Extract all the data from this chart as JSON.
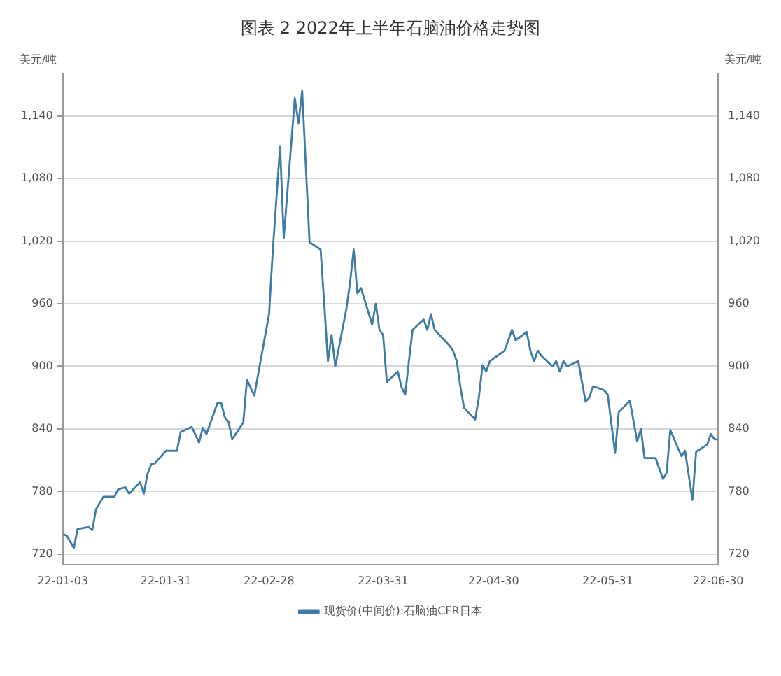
{
  "chart_data": {
    "type": "line",
    "title": "图表  2  2022年上半年石脑油价格走势图",
    "ylabel": "美元/吨",
    "y2label": "美元/吨",
    "xlim": [
      "2022-01-03",
      "2022-06-30"
    ],
    "xticks": [
      {
        "value": "2022-01-03",
        "label": "22-01-03"
      },
      {
        "value": "2022-01-31",
        "label": "22-01-31"
      },
      {
        "value": "2022-02-28",
        "label": "22-02-28"
      },
      {
        "value": "2022-03-31",
        "label": "22-03-31"
      },
      {
        "value": "2022-04-30",
        "label": "22-04-30"
      },
      {
        "value": "2022-05-31",
        "label": "22-05-31"
      },
      {
        "value": "2022-06-30",
        "label": "22-06-30"
      }
    ],
    "ylim": [
      710,
      1180
    ],
    "yticks": [
      {
        "value": 720,
        "label": "720"
      },
      {
        "value": 780,
        "label": "780"
      },
      {
        "value": 840,
        "label": "840"
      },
      {
        "value": 900,
        "label": "900"
      },
      {
        "value": 960,
        "label": "960"
      },
      {
        "value": 1020,
        "label": "1,020"
      },
      {
        "value": 1080,
        "label": "1,080"
      },
      {
        "value": 1140,
        "label": "1,140"
      }
    ],
    "y2lim": [
      710,
      1180
    ],
    "y2ticks": [
      {
        "value": 720,
        "label": "720"
      },
      {
        "value": 780,
        "label": "780"
      },
      {
        "value": 840,
        "label": "840"
      },
      {
        "value": 900,
        "label": "900"
      },
      {
        "value": 960,
        "label": "960"
      },
      {
        "value": 1020,
        "label": "1,020"
      },
      {
        "value": 1080,
        "label": "1,080"
      },
      {
        "value": 1140,
        "label": "1,140"
      }
    ],
    "grid": "y",
    "legend": "bottom",
    "marker": "none",
    "line_style": "solid",
    "series": [
      {
        "name": "现货价(中间价):石脑油CFR日本",
        "color": "#3e7ca6",
        "x": [
          "2022-01-03",
          "2022-01-04",
          "2022-01-06",
          "2022-01-07",
          "2022-01-10",
          "2022-01-11",
          "2022-01-12",
          "2022-01-14",
          "2022-01-17",
          "2022-01-18",
          "2022-01-20",
          "2022-01-21",
          "2022-01-24",
          "2022-01-25",
          "2022-01-26",
          "2022-01-27",
          "2022-01-28",
          "2022-01-31",
          "2022-02-03",
          "2022-02-04",
          "2022-02-07",
          "2022-02-09",
          "2022-02-10",
          "2022-02-11",
          "2022-02-14",
          "2022-02-15",
          "2022-02-16",
          "2022-02-17",
          "2022-02-18",
          "2022-02-21",
          "2022-02-22",
          "2022-02-24",
          "2022-02-28",
          "2022-03-01",
          "2022-03-03",
          "2022-03-04",
          "2022-03-07",
          "2022-03-08",
          "2022-03-09",
          "2022-03-11",
          "2022-03-14",
          "2022-03-15",
          "2022-03-16",
          "2022-03-17",
          "2022-03-18",
          "2022-03-21",
          "2022-03-22",
          "2022-03-23",
          "2022-03-24",
          "2022-03-25",
          "2022-03-28",
          "2022-03-29",
          "2022-03-30",
          "2022-03-31",
          "2022-04-01",
          "2022-04-04",
          "2022-04-05",
          "2022-04-06",
          "2022-04-07",
          "2022-04-08",
          "2022-04-11",
          "2022-04-12",
          "2022-04-13",
          "2022-04-14",
          "2022-04-18",
          "2022-04-19",
          "2022-04-20",
          "2022-04-21",
          "2022-04-22",
          "2022-04-25",
          "2022-04-26",
          "2022-04-27",
          "2022-04-28",
          "2022-04-29",
          "2022-05-03",
          "2022-05-04",
          "2022-05-05",
          "2022-05-06",
          "2022-05-09",
          "2022-05-10",
          "2022-05-11",
          "2022-05-12",
          "2022-05-13",
          "2022-05-16",
          "2022-05-17",
          "2022-05-18",
          "2022-05-19",
          "2022-05-20",
          "2022-05-23",
          "2022-05-24",
          "2022-05-25",
          "2022-05-26",
          "2022-05-27",
          "2022-05-30",
          "2022-05-31",
          "2022-06-02",
          "2022-06-03",
          "2022-06-06",
          "2022-06-08",
          "2022-06-09",
          "2022-06-10",
          "2022-06-13",
          "2022-06-15",
          "2022-06-16",
          "2022-06-17",
          "2022-06-20",
          "2022-06-21",
          "2022-06-23",
          "2022-06-24",
          "2022-06-27",
          "2022-06-28",
          "2022-06-29",
          "2022-06-30"
        ],
        "values": [
          739,
          738,
          726,
          744,
          746,
          743,
          763,
          775,
          775,
          782,
          784,
          778,
          789,
          778,
          797,
          806,
          807,
          819,
          819,
          837,
          842,
          827,
          841,
          835,
          865,
          865,
          851,
          847,
          830,
          846,
          887,
          872,
          950,
          1010,
          1111,
          1023,
          1157,
          1133,
          1164,
          1019,
          1012,
          960,
          905,
          930,
          900,
          955,
          980,
          1012,
          970,
          975,
          940,
          960,
          935,
          930,
          885,
          895,
          880,
          873,
          905,
          935,
          945,
          935,
          950,
          935,
          920,
          915,
          905,
          880,
          860,
          849,
          870,
          901,
          895,
          905,
          915,
          925,
          935,
          925,
          933,
          915,
          905,
          915,
          910,
          900,
          905,
          895,
          905,
          900,
          905,
          885,
          866,
          870,
          881,
          877,
          873,
          817,
          856,
          867,
          828,
          840,
          812,
          812,
          792,
          798,
          839,
          814,
          819,
          772,
          818,
          825,
          835,
          830,
          830
        ]
      }
    ]
  }
}
